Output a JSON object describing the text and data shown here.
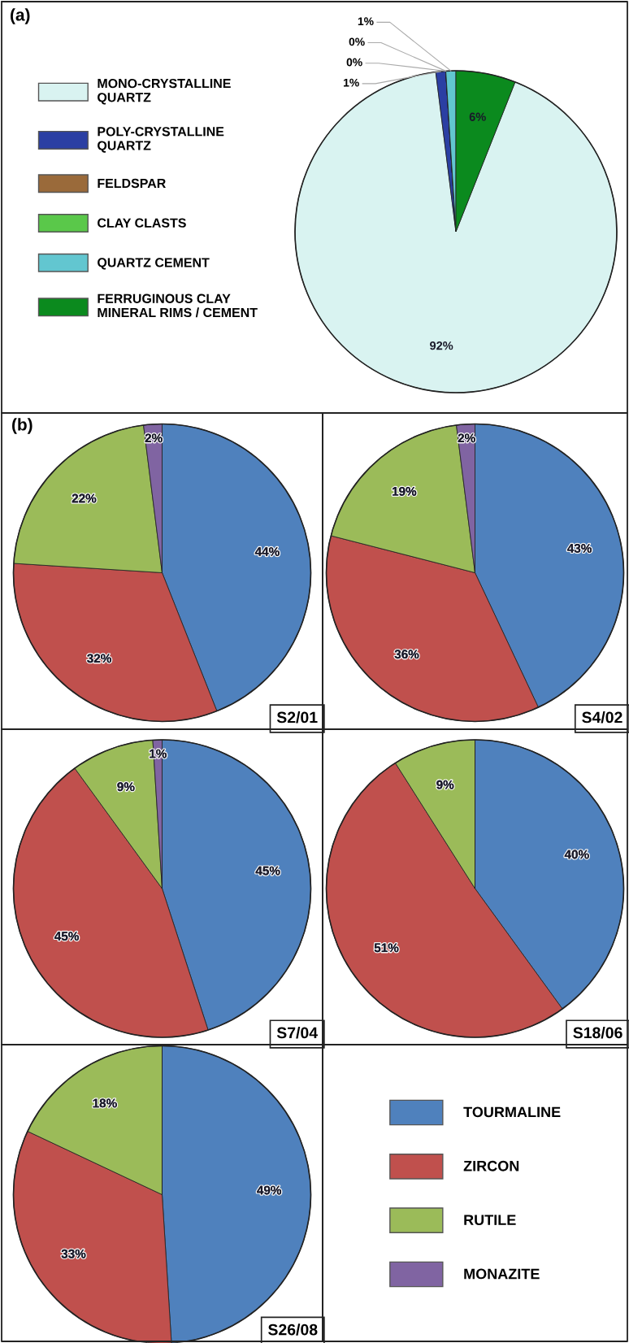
{
  "chart_data": [
    {
      "type": "pie",
      "title": "(a)",
      "categories": [
        "MONO-CRYSTALLINE\nQUARTZ",
        "POLY-CRYSTALLINE\nQUARTZ",
        "FELDSPAR",
        "CLAY CLASTS",
        "QUARTZ CEMENT",
        "FERRUGINOUS CLAY\nMINERAL RIMS / CEMENT"
      ],
      "values": [
        92,
        1,
        0,
        0,
        1,
        6
      ],
      "colors": [
        "#d9f3f1",
        "#2b3fa3",
        "#9a6a3a",
        "#5ac84a",
        "#62c6d0",
        "#0b8a1e"
      ],
      "value_labels": [
        "92%",
        "1%",
        "0%",
        "0%",
        "1%",
        "6%"
      ],
      "legend": "left"
    },
    {
      "type": "pie",
      "title": "(b)",
      "categories": [
        "TOURMALINE",
        "ZIRCON",
        "RUTILE",
        "MONAZITE"
      ],
      "values": [
        44,
        32,
        22,
        2
      ],
      "colors": [
        "#4f81bd",
        "#c0504d",
        "#9bbb59",
        "#8064a2"
      ],
      "value_labels": [
        "44%",
        "32%",
        "22%",
        "2%"
      ],
      "annotations": [
        "S2/01"
      ],
      "legend": "bottom right"
    },
    {
      "type": "pie",
      "categories": [
        null,
        null,
        null,
        null
      ],
      "values": [
        43,
        36,
        19,
        2
      ],
      "colors": [
        "#4f81bd",
        "#c0504d",
        "#9bbb59",
        "#8064a2"
      ],
      "value_labels": [
        "43%",
        "36%",
        "19%",
        "2%"
      ],
      "annotations": [
        "S4/02"
      ]
    },
    {
      "type": "pie",
      "categories": [
        null,
        null,
        null,
        null
      ],
      "values": [
        45,
        45,
        9,
        1
      ],
      "colors": [
        "#4f81bd",
        "#c0504d",
        "#9bbb59",
        "#8064a2"
      ],
      "value_labels": [
        "45%",
        "45%",
        "9%",
        "1%"
      ],
      "annotations": [
        "S7/04"
      ]
    },
    {
      "type": "pie",
      "categories": [
        null,
        null,
        null,
        null
      ],
      "values": [
        40,
        51,
        9,
        0
      ],
      "colors": [
        "#4f81bd",
        "#c0504d",
        "#9bbb59",
        "#8064a2"
      ],
      "value_labels": [
        "40%",
        "51%",
        "9%",
        null
      ],
      "annotations": [
        "S18/06"
      ]
    },
    {
      "type": "pie",
      "categories": [
        null,
        null,
        null,
        null
      ],
      "values": [
        49,
        33,
        18,
        0
      ],
      "colors": [
        "#4f81bd",
        "#c0504d",
        "#9bbb59",
        "#8064a2"
      ],
      "value_labels": [
        "49%",
        "33%",
        "18%",
        null
      ],
      "annotations": [
        "S26/08"
      ]
    }
  ]
}
